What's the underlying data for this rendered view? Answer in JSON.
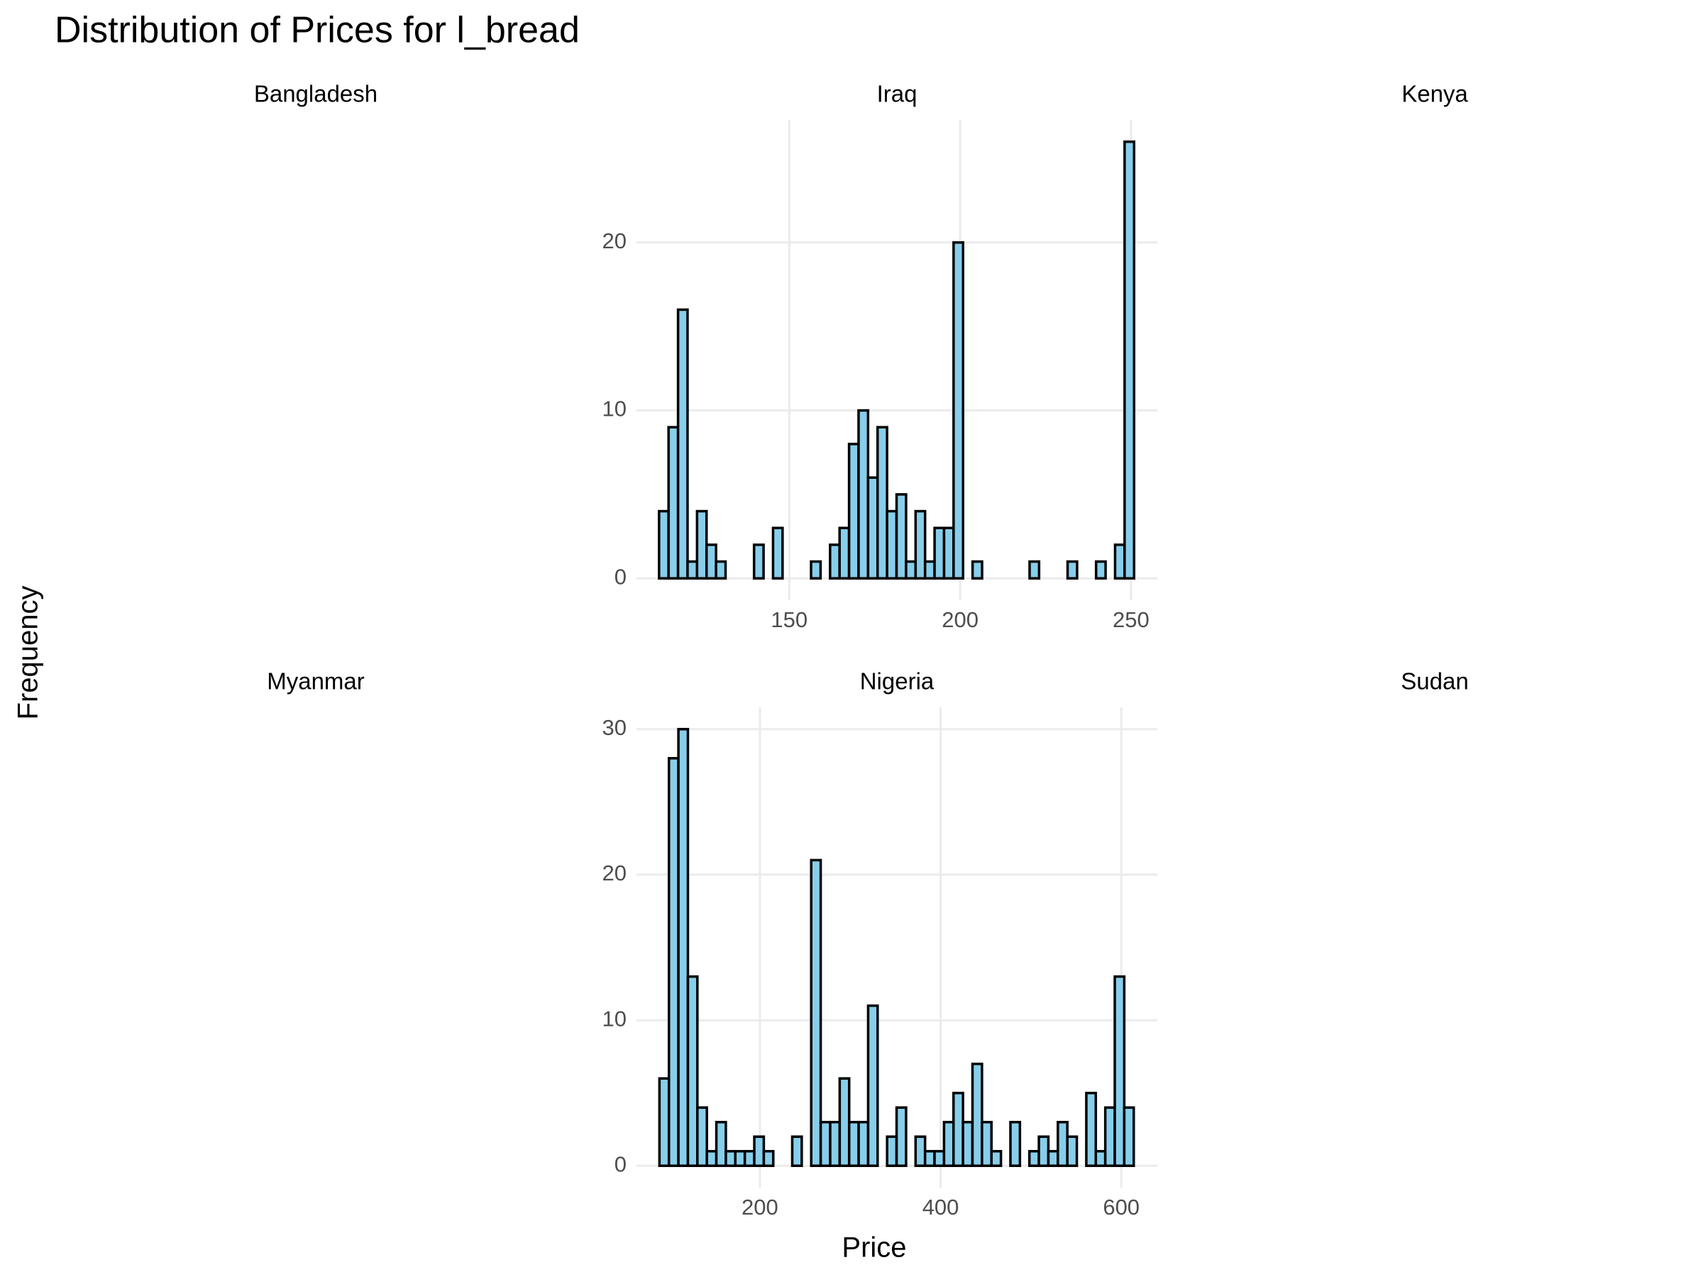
{
  "chart_data": {
    "type": "histogram",
    "title": "Distribution of Prices for l_bread",
    "x_label": "Price",
    "y_label": "Frequency",
    "color": "#87ceeb",
    "edgecolor": "#000000",
    "grid": true,
    "facets": [
      {
        "name": "Bangladesh"
      },
      {
        "name": "Iraq",
        "bins": [
          111.9,
          114.68,
          117.46,
          120.24,
          123.02,
          125.8,
          128.58,
          131.36,
          134.14,
          136.92,
          139.7,
          142.48,
          145.26,
          148.04,
          150.82,
          153.6,
          156.38,
          159.16,
          161.94,
          164.72,
          167.5,
          170.28,
          173.06,
          175.84,
          178.62,
          181.4,
          184.18,
          186.96,
          189.74,
          192.52,
          195.3,
          198.08,
          200.86,
          203.64,
          206.42,
          209.2,
          211.98,
          214.76,
          217.54,
          220.32,
          223.1,
          225.88,
          228.66,
          231.44,
          234.22,
          237.0,
          239.78,
          242.56,
          245.34,
          248.12,
          250.9
        ],
        "values": [
          4,
          9,
          16,
          1,
          4,
          2,
          1,
          0,
          0,
          0,
          2,
          0,
          3,
          0,
          0,
          0,
          1,
          0,
          2,
          3,
          8,
          10,
          6,
          9,
          4,
          5,
          1,
          4,
          1,
          3,
          3,
          20,
          0,
          1,
          0,
          0,
          0,
          0,
          0,
          1,
          0,
          0,
          0,
          1,
          0,
          0,
          1,
          0,
          2,
          26
        ],
        "xlim": [
          105.3,
          257.7
        ],
        "xticks": [
          150,
          200,
          250
        ],
        "ylim": [
          -1.3,
          27.3
        ],
        "yticks": [
          0,
          10,
          20
        ]
      },
      {
        "name": "Kenya"
      },
      {
        "name": "Myanmar"
      },
      {
        "name": "Nigeria",
        "bins": [
          88.8,
          99.3,
          109.8,
          120.3,
          130.8,
          141.3,
          151.8,
          162.3,
          172.8,
          183.3,
          193.8,
          204.3,
          214.8,
          225.3,
          235.8,
          246.3,
          256.8,
          267.3,
          277.8,
          288.3,
          298.8,
          309.3,
          319.8,
          330.3,
          340.8,
          351.3,
          361.8,
          372.3,
          382.8,
          393.3,
          403.8,
          414.3,
          424.8,
          435.3,
          445.8,
          456.3,
          466.8,
          477.3,
          487.8,
          498.3,
          508.8,
          519.3,
          529.8,
          540.3,
          550.8,
          561.3,
          571.8,
          582.3,
          592.8,
          603.3,
          613.8
        ],
        "values": [
          6,
          28,
          30,
          13,
          4,
          1,
          3,
          1,
          1,
          1,
          2,
          1,
          0,
          0,
          2,
          0,
          21,
          3,
          3,
          6,
          3,
          3,
          11,
          0,
          2,
          4,
          0,
          2,
          1,
          1,
          3,
          5,
          3,
          7,
          3,
          1,
          0,
          3,
          0,
          1,
          2,
          1,
          3,
          2,
          0,
          5,
          1,
          4,
          13,
          4
        ],
        "xlim": [
          63.4,
          639.9
        ],
        "xticks": [
          200,
          400,
          600
        ],
        "ylim": [
          -1.5,
          31.5
        ],
        "yticks": [
          0,
          10,
          20,
          30
        ]
      },
      {
        "name": "Sudan"
      }
    ]
  }
}
